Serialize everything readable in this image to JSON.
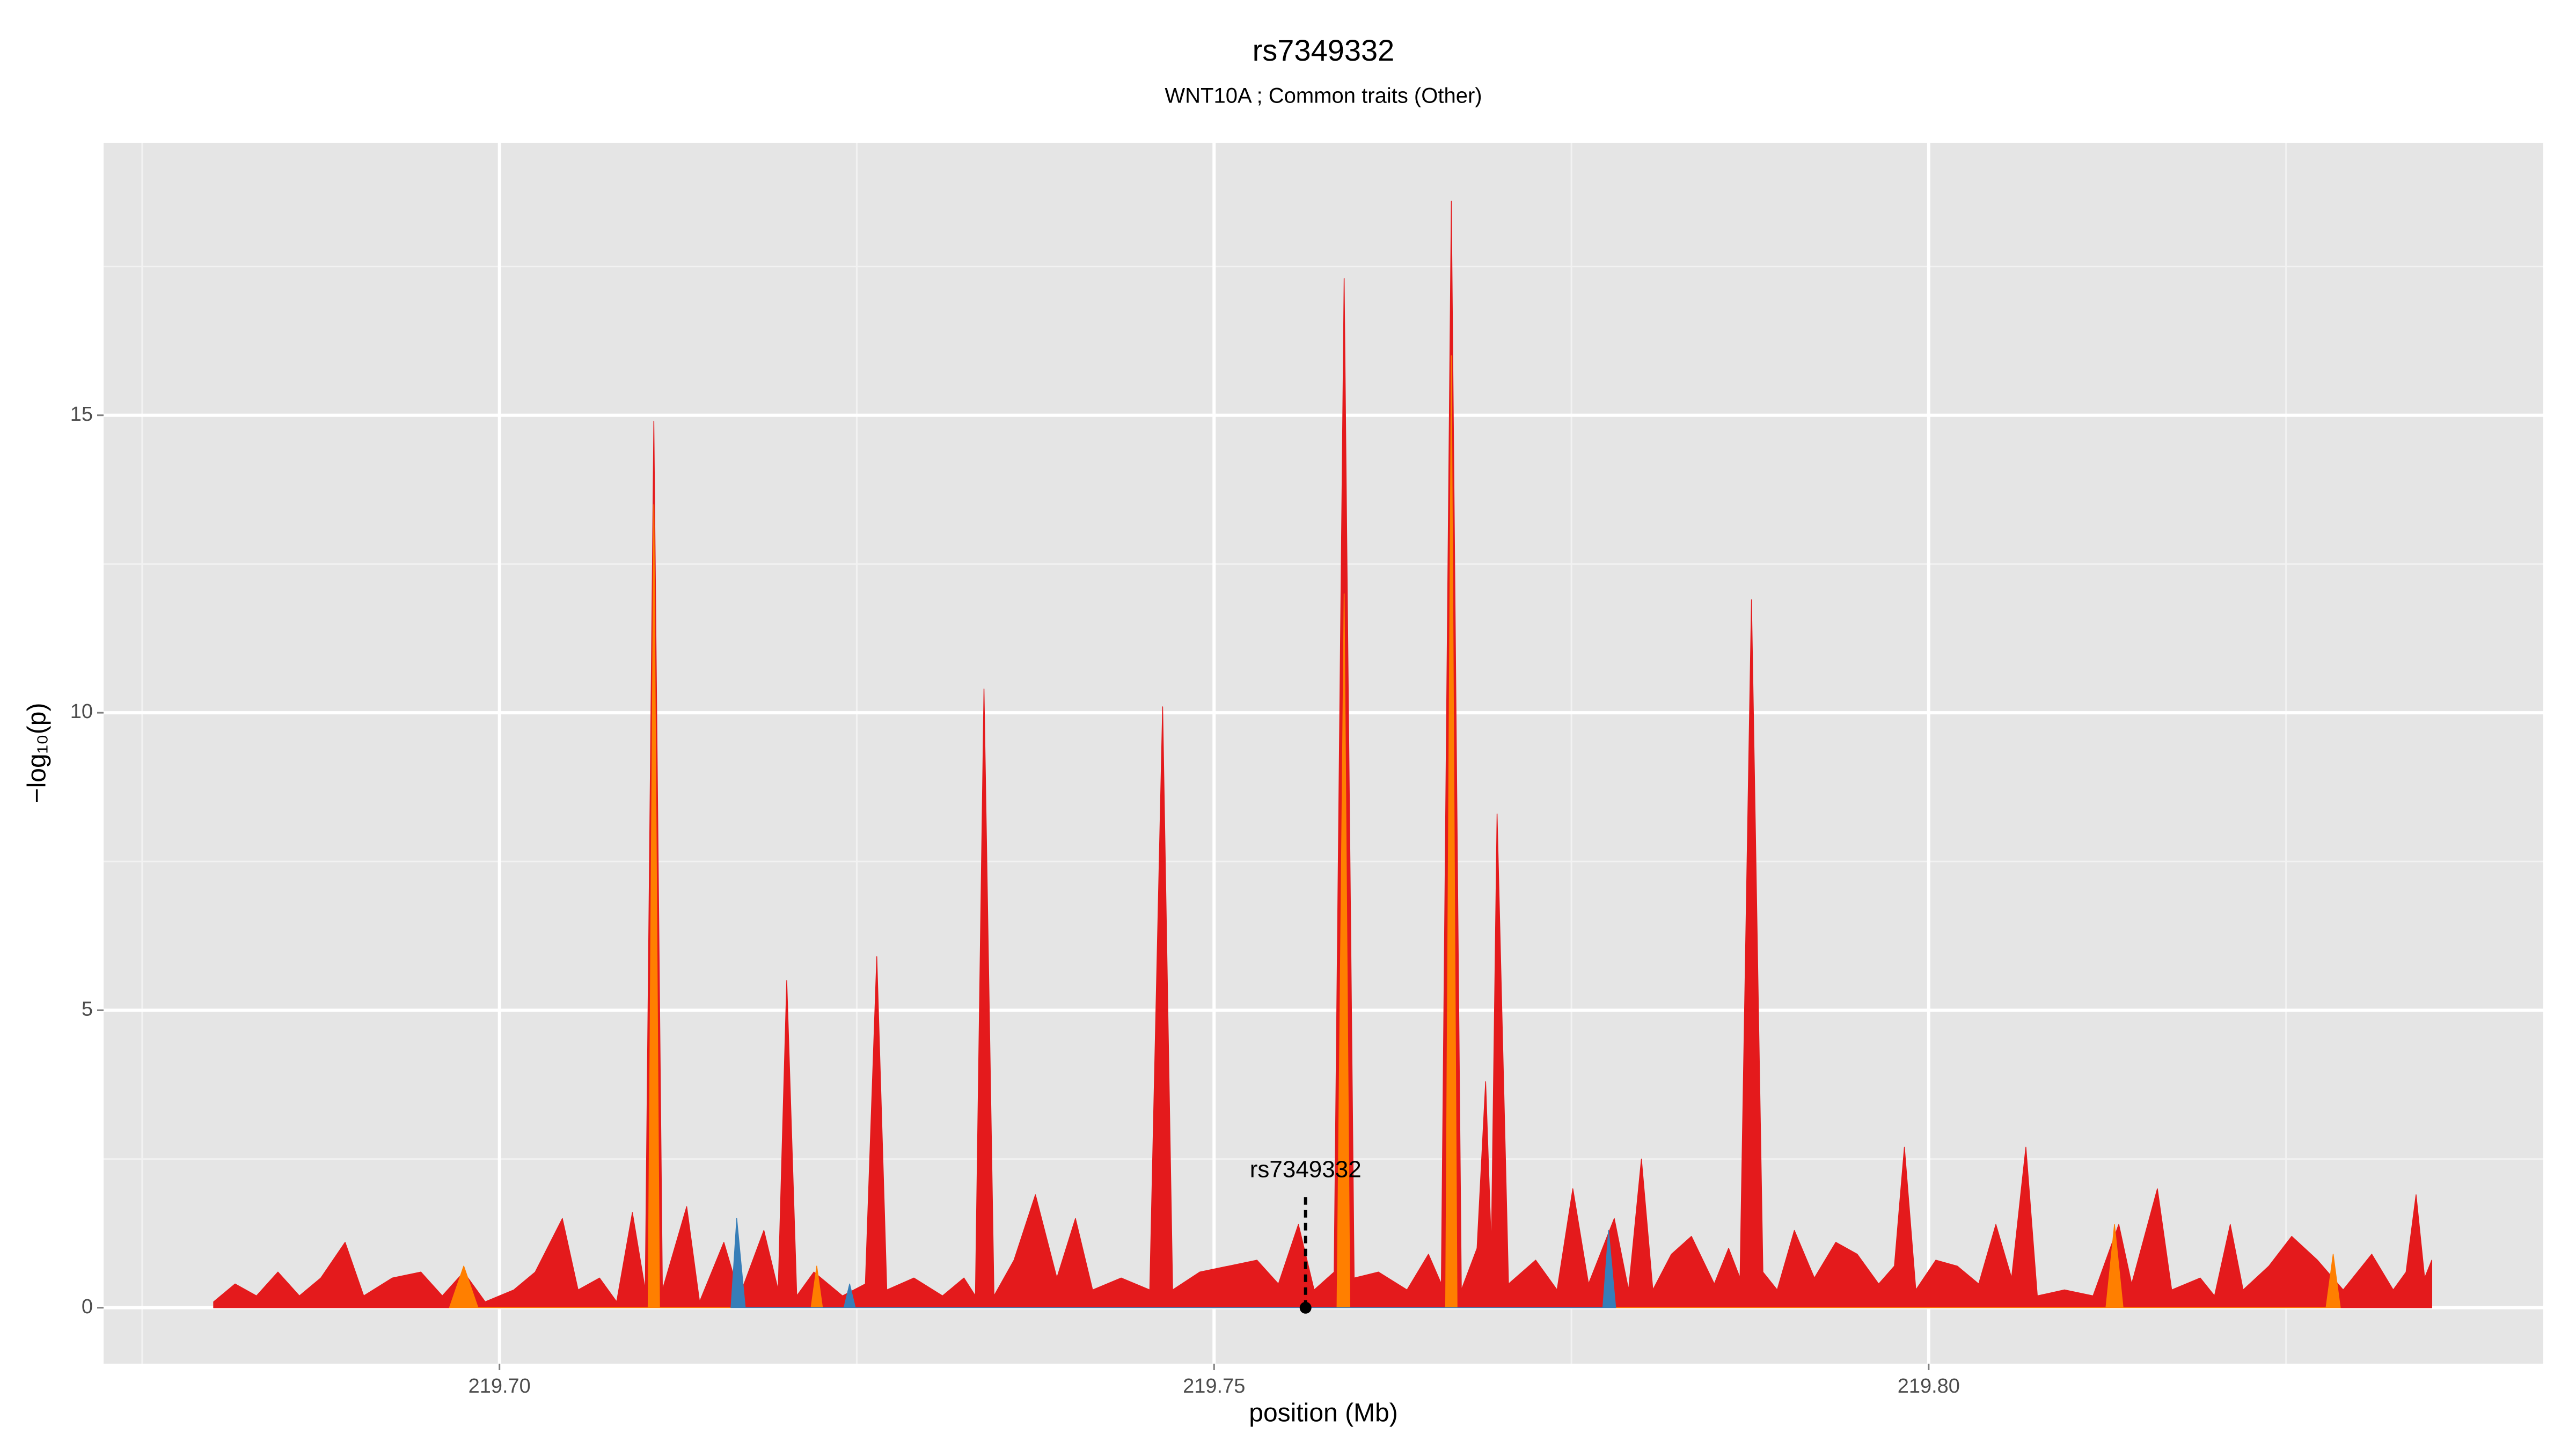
{
  "chart_data": {
    "type": "area",
    "title": "rs7349332",
    "subtitle": "WNT10A ; Common traits (Other)",
    "xlabel": "position (Mb)",
    "ylabel": "−log₁₀(p)",
    "xlim": [
      219.6723,
      219.843
    ],
    "ylim": [
      -0.94,
      19.58
    ],
    "xticks": [
      {
        "value": 219.7,
        "label": "219.70"
      },
      219.75,
      {
        "value": 219.8,
        "label": "219.80"
      }
    ],
    "yticks": [
      0,
      5,
      10,
      15
    ],
    "xminorticks": [
      219.675,
      219.725,
      219.775,
      219.825
    ],
    "yminorticks": [
      2.5,
      7.5,
      12.5,
      17.5
    ],
    "grid": true,
    "annotation": {
      "text": "rs7349332",
      "x": 219.7564,
      "y": 0
    },
    "series": [
      {
        "color": "#e41a1c",
        "x": [
          219.68,
          219.6815,
          219.683,
          219.6845,
          219.686,
          219.6875,
          219.6892,
          219.6905,
          219.6925,
          219.6945,
          219.696,
          219.6975,
          219.699,
          219.701,
          219.7025,
          219.7044,
          219.7055,
          219.707,
          219.7082,
          219.7093,
          219.7102,
          219.7108,
          219.7114,
          219.7131,
          219.714,
          219.7157,
          219.7168,
          219.7185,
          219.7195,
          219.7201,
          219.7208,
          219.722,
          219.724,
          219.7256,
          219.7264,
          219.7271,
          219.729,
          219.731,
          219.7325,
          219.7333,
          219.7339,
          219.7346,
          219.736,
          219.7375,
          219.739,
          219.7403,
          219.7415,
          219.7435,
          219.7455,
          219.7464,
          219.7471,
          219.749,
          219.751,
          219.753,
          219.7545,
          219.7559,
          219.757,
          219.7584,
          219.7591,
          219.7598,
          219.7615,
          219.7635,
          219.765,
          219.7659,
          219.7666,
          219.7673,
          219.7684,
          219.769,
          219.7694,
          219.7698,
          219.7706,
          219.7725,
          219.774,
          219.7751,
          219.7762,
          219.778,
          219.779,
          219.7799,
          219.7807,
          219.782,
          219.7834,
          219.785,
          219.786,
          219.7868,
          219.7876,
          219.7884,
          219.7894,
          219.7906,
          219.792,
          219.7935,
          219.795,
          219.7965,
          219.7976,
          219.7983,
          219.7991,
          219.8005,
          219.802,
          219.8035,
          219.8047,
          219.8058,
          219.8068,
          219.8076,
          219.8095,
          219.8115,
          219.8133,
          219.8142,
          219.816,
          219.817,
          219.819,
          219.82,
          219.8211,
          219.822,
          219.8238,
          219.8254,
          219.8272,
          219.829,
          219.831,
          219.8325,
          219.8334,
          219.8341,
          219.8347,
          219.8352
        ],
        "values": [
          0.1,
          0.4,
          0.2,
          0.6,
          0.2,
          0.5,
          1.1,
          0.2,
          0.5,
          0.6,
          0.2,
          0.6,
          0.1,
          0.3,
          0.6,
          1.5,
          0.3,
          0.5,
          0.1,
          1.6,
          0.3,
          14.9,
          0.3,
          1.7,
          0.1,
          1.1,
          0.2,
          1.3,
          0.3,
          5.5,
          0.2,
          0.6,
          0.2,
          0.4,
          5.9,
          0.3,
          0.5,
          0.2,
          0.5,
          0.2,
          10.4,
          0.2,
          0.8,
          1.9,
          0.5,
          1.5,
          0.3,
          0.5,
          0.3,
          10.1,
          0.3,
          0.6,
          0.7,
          0.8,
          0.4,
          1.4,
          0.3,
          0.6,
          17.3,
          0.5,
          0.6,
          0.3,
          0.9,
          0.4,
          18.6,
          0.3,
          1.0,
          3.8,
          1.0,
          8.3,
          0.4,
          0.8,
          0.3,
          2.0,
          0.4,
          1.5,
          0.3,
          2.5,
          0.3,
          0.9,
          1.2,
          0.4,
          1.0,
          0.5,
          11.9,
          0.6,
          0.3,
          1.3,
          0.5,
          1.1,
          0.9,
          0.4,
          0.7,
          2.7,
          0.3,
          0.8,
          0.7,
          0.4,
          1.4,
          0.5,
          2.7,
          0.2,
          0.3,
          0.2,
          1.4,
          0.4,
          2.0,
          0.3,
          0.5,
          0.2,
          1.4,
          0.3,
          0.7,
          1.2,
          0.8,
          0.3,
          0.9,
          0.3,
          0.6,
          1.9,
          0.5,
          0.8
        ]
      },
      {
        "color": "#ff7f00",
        "x": [
          219.6965,
          219.6975,
          219.6985,
          219.7104,
          219.7108,
          219.7112,
          219.7218,
          219.7222,
          219.7226,
          219.7586,
          219.7591,
          219.7595,
          219.7662,
          219.7666,
          219.767,
          219.8124,
          219.813,
          219.8136,
          219.8278,
          219.8283,
          219.8288
        ],
        "values": [
          0,
          0.7,
          0,
          0,
          13.5,
          0,
          0,
          0.7,
          0,
          0,
          12.0,
          0,
          0,
          16.0,
          0,
          0,
          1.4,
          0,
          0,
          0.9,
          0
        ]
      },
      {
        "color": "#377eb8",
        "x": [
          219.7162,
          219.7166,
          219.7172,
          219.7241,
          219.7245,
          219.7249,
          219.7772,
          219.7776,
          219.7781
        ],
        "values": [
          0,
          1.5,
          0,
          0,
          0.4,
          0,
          0,
          1.3,
          0
        ]
      }
    ]
  }
}
